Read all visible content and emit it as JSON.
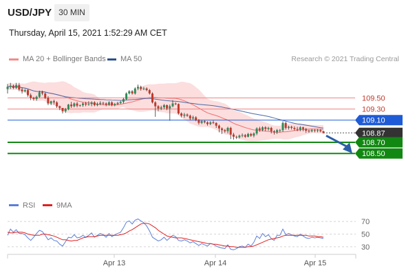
{
  "header": {
    "pair": "USD/JPY",
    "timeframe": "30 MIN",
    "timestamp": "Thursday, April 15, 2021 1:52:29 AM CET"
  },
  "legend": {
    "ma20_label": "MA 20 + Bollinger Bands",
    "ma50_label": "MA 50",
    "rsi_label": "RSI",
    "rsi_ma_label": "9MA"
  },
  "credit": "Research © 2021 Trading Central",
  "colors": {
    "up": "#2e8b57",
    "down": "#c0392b",
    "bollinger_fill": "#fcdede",
    "ma20": "#f07070",
    "ma50": "#4a6aa8",
    "resistance": "#f08080",
    "pivot": "#1e5bd6",
    "support": "#118811",
    "current": "#333333",
    "rsi": "#5a7ed8",
    "rsi_ma": "#e02020",
    "arrow": "#2c5ea8"
  },
  "chart_data": {
    "type": "candlestick",
    "xlabels": [
      "Apr 13",
      "Apr 14",
      "Apr 15"
    ],
    "price_ylim": [
      108.23,
      110.05
    ],
    "levels": [
      {
        "label": "109.50",
        "value": 109.5,
        "kind": "resistance"
      },
      {
        "label": "109.30",
        "value": 109.3,
        "kind": "resistance"
      },
      {
        "label": "109.10",
        "value": 109.1,
        "kind": "pivot"
      },
      {
        "label": "108.87",
        "value": 108.87,
        "kind": "current"
      },
      {
        "label": "108.70",
        "value": 108.7,
        "kind": "support"
      },
      {
        "label": "108.50",
        "value": 108.5,
        "kind": "support"
      }
    ],
    "forecast_target": 108.5,
    "close": [
      109.7,
      109.72,
      109.68,
      109.73,
      109.65,
      109.62,
      109.64,
      109.55,
      109.5,
      109.48,
      109.52,
      109.6,
      109.58,
      109.5,
      109.4,
      109.44,
      109.42,
      109.35,
      109.32,
      109.26,
      109.3,
      109.38,
      109.35,
      109.4,
      109.36,
      109.37,
      109.4,
      109.38,
      109.39,
      109.42,
      109.37,
      109.39,
      109.41,
      109.4,
      109.38,
      109.42,
      109.37,
      109.39,
      109.41,
      109.43,
      109.48,
      109.58,
      109.62,
      109.58,
      109.67,
      109.7,
      109.66,
      109.67,
      109.64,
      109.58,
      109.42,
      109.35,
      109.31,
      109.33,
      109.37,
      109.31,
      109.35,
      109.4,
      109.39,
      109.22,
      109.18,
      109.2,
      109.18,
      109.13,
      109.15,
      109.1,
      109.05,
      109.08,
      109.06,
      109.03,
      109.06,
      109.05,
      109.0,
      108.95,
      108.92,
      108.9,
      108.96,
      108.84,
      108.8,
      108.79,
      108.82,
      108.83,
      108.8,
      108.85,
      108.82,
      108.86,
      108.95,
      108.92,
      108.97,
      108.94,
      108.96,
      108.9,
      108.88,
      108.92,
      108.92,
      109.05,
      108.96,
      108.98,
      108.96,
      108.94,
      108.93,
      108.97,
      108.94,
      108.91,
      108.9,
      108.92,
      108.91,
      108.92,
      108.9,
      108.87
    ],
    "high": [
      109.75,
      109.77,
      109.74,
      109.77,
      109.77,
      109.69,
      109.66,
      109.66,
      109.58,
      109.52,
      109.54,
      109.63,
      109.63,
      109.6,
      109.53,
      109.45,
      109.47,
      109.44,
      109.36,
      109.32,
      109.32,
      109.39,
      109.43,
      109.42,
      109.43,
      109.38,
      109.42,
      109.43,
      109.44,
      109.44,
      109.44,
      109.42,
      109.44,
      109.43,
      109.42,
      109.44,
      109.44,
      109.41,
      109.43,
      109.45,
      109.5,
      109.6,
      109.64,
      109.64,
      109.69,
      109.74,
      109.72,
      109.7,
      109.69,
      109.66,
      109.6,
      109.44,
      109.37,
      109.36,
      109.39,
      109.38,
      109.38,
      109.46,
      109.42,
      109.4,
      109.24,
      109.23,
      109.22,
      109.2,
      109.18,
      109.17,
      109.12,
      109.1,
      109.1,
      109.08,
      109.08,
      109.09,
      109.06,
      109.02,
      108.97,
      108.94,
      108.98,
      108.98,
      108.87,
      108.82,
      108.84,
      108.86,
      108.85,
      108.87,
      108.87,
      108.88,
      108.97,
      108.98,
      108.99,
      108.99,
      108.98,
      108.98,
      108.92,
      108.94,
      108.94,
      109.08,
      109.07,
      109.0,
      109.0,
      108.99,
      108.98,
      108.99,
      108.98,
      108.96,
      108.93,
      108.94,
      108.94,
      108.94,
      108.94,
      108.91
    ],
    "low": [
      109.58,
      109.66,
      109.66,
      109.66,
      109.62,
      109.58,
      109.6,
      109.52,
      109.46,
      109.45,
      109.45,
      109.5,
      109.55,
      109.48,
      109.37,
      109.37,
      109.38,
      109.32,
      109.28,
      109.22,
      109.23,
      109.28,
      109.32,
      109.33,
      109.33,
      109.34,
      109.34,
      109.35,
      109.36,
      109.35,
      109.35,
      109.35,
      109.37,
      109.37,
      109.35,
      109.36,
      109.35,
      109.35,
      109.37,
      109.39,
      109.4,
      109.46,
      109.56,
      109.56,
      109.56,
      109.64,
      109.63,
      109.64,
      109.62,
      109.56,
      109.4,
      109.16,
      109.26,
      109.28,
      109.3,
      109.28,
      109.09,
      109.33,
      109.37,
      109.2,
      109.15,
      109.14,
      109.16,
      109.1,
      109.11,
      109.08,
      109.02,
      109.03,
      109.04,
      109.0,
      109.01,
      109.03,
      108.96,
      108.88,
      108.85,
      108.87,
      108.86,
      108.76,
      108.75,
      108.76,
      108.77,
      108.79,
      108.78,
      108.79,
      108.8,
      108.79,
      108.83,
      108.89,
      108.9,
      108.9,
      108.91,
      108.86,
      108.84,
      108.85,
      108.88,
      108.89,
      108.93,
      108.93,
      108.93,
      108.91,
      108.9,
      108.9,
      108.9,
      108.87,
      108.87,
      108.88,
      108.88,
      108.88,
      108.88,
      108.86
    ],
    "rsi_ylim": [
      20,
      80
    ],
    "rsi_ticks": [
      70,
      50,
      30
    ],
    "rsi": [
      48,
      58,
      53,
      57,
      51,
      51,
      49,
      44,
      40,
      45,
      51,
      56,
      54,
      48,
      41,
      44,
      40,
      39,
      34,
      31,
      38,
      45,
      44,
      49,
      44,
      45,
      48,
      45,
      48,
      52,
      45,
      48,
      51,
      49,
      45,
      51,
      46,
      49,
      51,
      53,
      60,
      69,
      71,
      66,
      72,
      74,
      71,
      68,
      63,
      55,
      45,
      42,
      39,
      41,
      45,
      40,
      44,
      48,
      46,
      40,
      39,
      41,
      39,
      36,
      38,
      35,
      32,
      35,
      33,
      31,
      35,
      34,
      31,
      29,
      28,
      27,
      33,
      26,
      25,
      27,
      30,
      31,
      29,
      34,
      31,
      37,
      47,
      43,
      51,
      46,
      49,
      43,
      40,
      48,
      48,
      58,
      49,
      51,
      49,
      47,
      46,
      50,
      47,
      44,
      43,
      45,
      44,
      45,
      44,
      43
    ],
    "rsi_ma": [
      53,
      52,
      52,
      53,
      53,
      53,
      52,
      50,
      49,
      48,
      48,
      48,
      50,
      50,
      49,
      48,
      47,
      45,
      43,
      41,
      41,
      40,
      39,
      40,
      40,
      42,
      44,
      45,
      46,
      46,
      46,
      47,
      48,
      48,
      48,
      48,
      48,
      48,
      48,
      49,
      50,
      52,
      55,
      57,
      60,
      63,
      66,
      67,
      67,
      66,
      63,
      60,
      56,
      53,
      50,
      47,
      46,
      45,
      44,
      44,
      44,
      43,
      42,
      41,
      40,
      39,
      38,
      37,
      36,
      35,
      35,
      34,
      34,
      33,
      32,
      31,
      31,
      30,
      30,
      29,
      29,
      29,
      29,
      30,
      30,
      31,
      33,
      35,
      37,
      39,
      41,
      42,
      43,
      44,
      45,
      47,
      48,
      48,
      48,
      48,
      48,
      48,
      48,
      48,
      47,
      47,
      47,
      46,
      46,
      45
    ]
  }
}
